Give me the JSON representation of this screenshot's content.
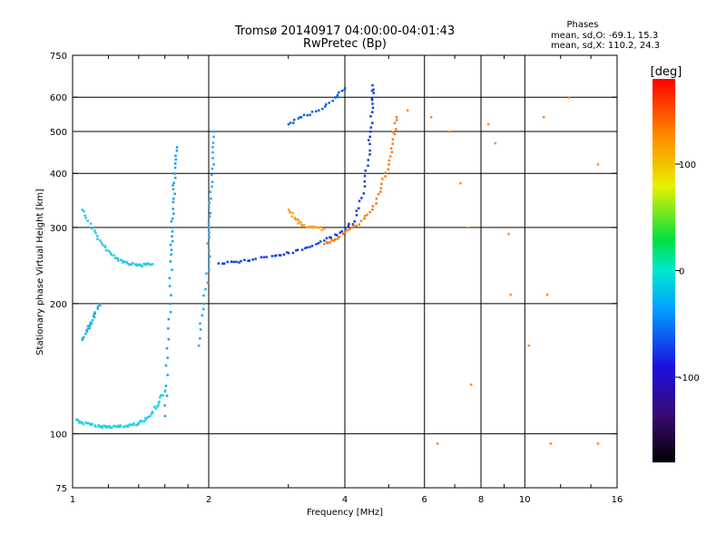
{
  "chart_data": {
    "type": "scatter",
    "title": "Tromsø 20140917 04:00:00-04:01:43",
    "subtitle": "RwPretec (Bp)",
    "xlabel": "Frequency [MHz]",
    "ylabel": "Stationary phase Virtual Height [km]",
    "x_scale": "log",
    "y_scale": "log",
    "xlim": [
      1,
      16
    ],
    "ylim": [
      75,
      750
    ],
    "x_ticks": [
      1,
      2,
      4,
      6,
      8,
      10,
      16
    ],
    "y_ticks": [
      75,
      100,
      200,
      300,
      400,
      500,
      600,
      750
    ],
    "x_gridlines": [
      2,
      4,
      6,
      8,
      10
    ],
    "y_gridlines": [
      100,
      200,
      300,
      400,
      500,
      600
    ],
    "legend": {
      "title": "Phases",
      "lines": [
        "mean, sd,O: -69.1, 15.3",
        "mean, sd,X: 110.2, 24.3"
      ]
    },
    "colorbar": {
      "label": "[deg]",
      "range": [
        -180,
        180
      ],
      "ticks": [
        100,
        0,
        -100
      ],
      "tick_labels": [
        "100",
        "0",
        "-100"
      ]
    },
    "series": [
      {
        "trace": "low E trace",
        "color": "#1fd0e8",
        "points": [
          [
            1.02,
            108
          ],
          [
            1.05,
            106
          ],
          [
            1.1,
            105
          ],
          [
            1.15,
            104
          ],
          [
            1.2,
            104
          ],
          [
            1.25,
            104
          ],
          [
            1.3,
            104
          ],
          [
            1.35,
            105
          ],
          [
            1.4,
            106
          ],
          [
            1.45,
            108
          ],
          [
            1.5,
            112
          ],
          [
            1.55,
            118
          ],
          [
            1.6,
            126
          ]
        ]
      },
      {
        "trace": "E-layer curve",
        "color": "#2cc6e6",
        "points": [
          [
            1.05,
            330
          ],
          [
            1.1,
            300
          ],
          [
            1.15,
            280
          ],
          [
            1.2,
            265
          ],
          [
            1.25,
            255
          ],
          [
            1.3,
            250
          ],
          [
            1.35,
            247
          ],
          [
            1.4,
            246
          ],
          [
            1.45,
            246
          ],
          [
            1.5,
            247
          ]
        ]
      },
      {
        "trace": "low F cusp",
        "color": "#20b0e8",
        "points": [
          [
            1.05,
            165
          ],
          [
            1.08,
            175
          ],
          [
            1.1,
            180
          ],
          [
            1.12,
            190
          ],
          [
            1.15,
            200
          ]
        ]
      },
      {
        "trace": "1.6 MHz column",
        "color": "#1c9ee8",
        "points": [
          [
            1.6,
            110
          ],
          [
            1.62,
            150
          ],
          [
            1.64,
            200
          ],
          [
            1.65,
            260
          ],
          [
            1.66,
            300
          ],
          [
            1.67,
            350
          ],
          [
            1.68,
            400
          ],
          [
            1.7,
            460
          ]
        ]
      },
      {
        "trace": "2 MHz column",
        "color": "#28a8ea",
        "points": [
          [
            1.9,
            160
          ],
          [
            1.95,
            200
          ],
          [
            2.0,
            250
          ],
          [
            2.0,
            300
          ],
          [
            2.02,
            350
          ],
          [
            2.05,
            420
          ],
          [
            2.05,
            500
          ]
        ]
      },
      {
        "trace": "O-mode F trace",
        "color": "#1840d8",
        "points": [
          [
            2.1,
            248
          ],
          [
            2.3,
            250
          ],
          [
            2.5,
            253
          ],
          [
            2.8,
            258
          ],
          [
            3.0,
            262
          ],
          [
            3.3,
            270
          ],
          [
            3.6,
            280
          ],
          [
            3.9,
            292
          ],
          [
            4.2,
            310
          ],
          [
            4.4,
            360
          ],
          [
            4.5,
            430
          ],
          [
            4.55,
            500
          ],
          [
            4.6,
            580
          ],
          [
            4.6,
            640
          ]
        ]
      },
      {
        "trace": "X-mode F trace",
        "color": "#ff7a10",
        "points": [
          [
            3.6,
            275
          ],
          [
            3.8,
            282
          ],
          [
            4.0,
            292
          ],
          [
            4.3,
            305
          ],
          [
            4.6,
            330
          ],
          [
            4.8,
            370
          ],
          [
            5.0,
            420
          ],
          [
            5.1,
            480
          ],
          [
            5.2,
            540
          ]
        ]
      },
      {
        "trace": "X-mode cusp",
        "color": "#ffa020",
        "points": [
          [
            3.0,
            330
          ],
          [
            3.1,
            315
          ],
          [
            3.2,
            305
          ],
          [
            3.4,
            300
          ],
          [
            3.6,
            298
          ]
        ]
      },
      {
        "trace": "upper oblique echoes",
        "color": "#1060e0",
        "points": [
          [
            3.0,
            520
          ],
          [
            3.2,
            540
          ],
          [
            3.5,
            560
          ],
          [
            3.8,
            600
          ],
          [
            4.0,
            630
          ]
        ]
      },
      {
        "trace": "sparse scatter",
        "color": "#ff8c20",
        "points": [
          [
            5.5,
            560
          ],
          [
            6.2,
            540
          ],
          [
            6.8,
            500
          ],
          [
            7.2,
            380
          ],
          [
            7.5,
            300
          ],
          [
            8.3,
            520
          ],
          [
            8.6,
            470
          ],
          [
            9.2,
            290
          ],
          [
            9.3,
            210
          ],
          [
            11.0,
            540
          ],
          [
            11.2,
            210
          ],
          [
            12.5,
            600
          ],
          [
            14.5,
            420
          ],
          [
            6.4,
            95
          ],
          [
            7.6,
            130
          ],
          [
            10.2,
            160
          ],
          [
            11.4,
            95
          ],
          [
            14.5,
            95
          ]
        ]
      }
    ]
  }
}
